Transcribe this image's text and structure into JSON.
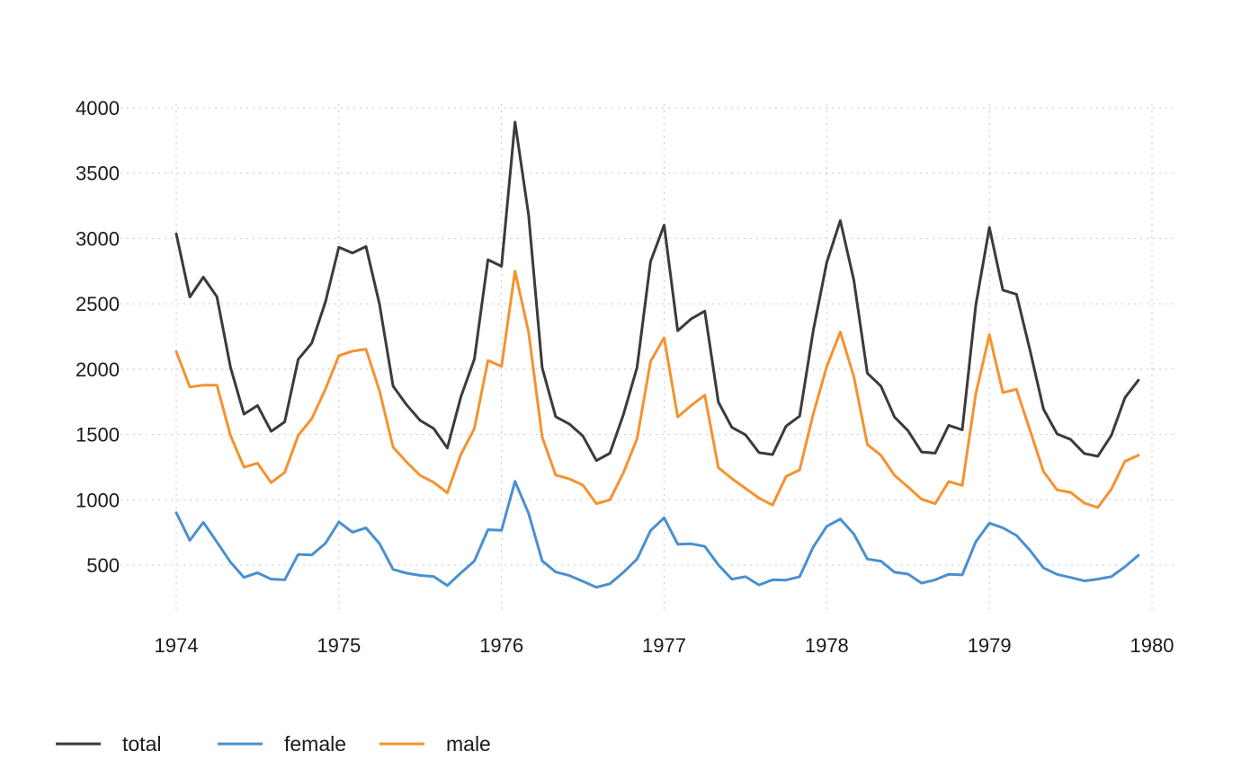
{
  "chart_data": {
    "type": "line",
    "title": "",
    "xlabel": "",
    "ylabel": "",
    "xlim": [
      1974,
      1980
    ],
    "ylim": [
      150,
      4000
    ],
    "grid": true,
    "legend_position": "bottom",
    "x_start": 1974,
    "x_step": 0.08333333,
    "x_ticks": [
      1974,
      1975,
      1976,
      1977,
      1978,
      1979,
      1980
    ],
    "x_tick_labels": [
      "1974",
      "1975",
      "1976",
      "1977",
      "1978",
      "1979",
      "1980"
    ],
    "y_ticks": [
      500,
      1000,
      1500,
      2000,
      2500,
      3000,
      3500,
      4000
    ],
    "y_tick_labels": [
      "500",
      "1000",
      "1500",
      "2000",
      "2500",
      "3000",
      "3500",
      "4000"
    ],
    "series": [
      {
        "name": "total",
        "color": "#3b3b3b",
        "values": [
          3035,
          2552,
          2704,
          2554,
          2014,
          1655,
          1721,
          1524,
          1596,
          2074,
          2199,
          2512,
          2933,
          2889,
          2938,
          2497,
          1870,
          1726,
          1607,
          1545,
          1396,
          1787,
          2076,
          2837,
          2787,
          3891,
          3179,
          2011,
          1636,
          1580,
          1489,
          1300,
          1356,
          1653,
          2013,
          2823,
          3102,
          2294,
          2385,
          2444,
          1748,
          1554,
          1498,
          1361,
          1346,
          1564,
          1640,
          2293,
          2815,
          3137,
          2679,
          1969,
          1870,
          1633,
          1529,
          1366,
          1357,
          1570,
          1535,
          2491,
          3084,
          2605,
          2573,
          2143,
          1693,
          1504,
          1461,
          1354,
          1333,
          1492,
          1781,
          1915
        ]
      },
      {
        "name": "female",
        "color": "#4a90d0",
        "values": [
          901,
          689,
          827,
          677,
          522,
          406,
          441,
          393,
          387,
          582,
          578,
          666,
          830,
          752,
          785,
          664,
          467,
          438,
          421,
          412,
          343,
          440,
          531,
          771,
          767,
          1141,
          896,
          532,
          447,
          420,
          376,
          330,
          357,
          445,
          546,
          764,
          862,
          660,
          663,
          643,
          502,
          392,
          411,
          348,
          387,
          385,
          411,
          638,
          796,
          853,
          737,
          546,
          530,
          446,
          431,
          362,
          387,
          430,
          425,
          679,
          821,
          785,
          727,
          612,
          478,
          429,
          405,
          379,
          393,
          411,
          487,
          574
        ]
      },
      {
        "name": "male",
        "color": "#f5922f",
        "values": [
          2134,
          1863,
          1877,
          1877,
          1492,
          1249,
          1280,
          1131,
          1209,
          1492,
          1621,
          1846,
          2103,
          2137,
          2153,
          1833,
          1403,
          1288,
          1186,
          1133,
          1053,
          1347,
          1545,
          2066,
          2020,
          2750,
          2283,
          1479,
          1189,
          1160,
          1113,
          970,
          999,
          1208,
          1467,
          2059,
          2240,
          1634,
          1722,
          1801,
          1246,
          1162,
          1087,
          1013,
          959,
          1179,
          1229,
          1655,
          2019,
          2284,
          1942,
          1423,
          1340,
          1187,
          1098,
          1004,
          970,
          1140,
          1110,
          1812,
          2263,
          1820,
          1846,
          1531,
          1215,
          1075,
          1056,
          975,
          940,
          1081,
          1294,
          1341
        ]
      }
    ]
  }
}
